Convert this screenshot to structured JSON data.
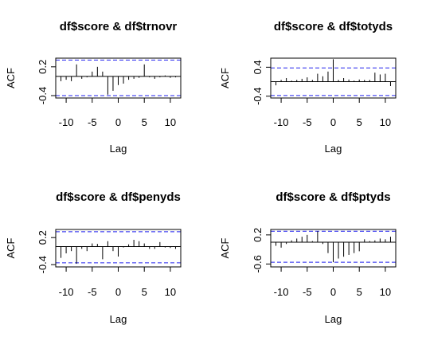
{
  "chart_data": [
    {
      "type": "bar",
      "title": "df$score & df$trnovr",
      "xlabel": "Lag",
      "ylabel": "ACF",
      "xlim": [
        -12,
        12
      ],
      "ylim": [
        -0.45,
        0.38
      ],
      "xticks": [
        -10,
        -5,
        0,
        5,
        10
      ],
      "xtick_labels": [
        "-10",
        "-5",
        "0",
        "5",
        "10"
      ],
      "yticks": [
        0.2,
        -0.4
      ],
      "ytick_labels": [
        "0.2",
        "-0.4"
      ],
      "ci": [
        0.34,
        -0.4
      ],
      "ci_color": "#2222ee",
      "lags": [
        -11,
        -10,
        -9,
        -8,
        -7,
        -6,
        -5,
        -4,
        -3,
        -2,
        -1,
        0,
        1,
        2,
        3,
        4,
        5,
        6,
        7,
        8,
        9,
        10,
        11
      ],
      "values": [
        -0.1,
        -0.07,
        -0.1,
        0.25,
        -0.05,
        -0.02,
        0.1,
        0.2,
        0.1,
        -0.38,
        -0.3,
        -0.18,
        -0.15,
        -0.07,
        -0.05,
        -0.03,
        0.25,
        -0.02,
        -0.05,
        -0.02,
        0.02,
        -0.03,
        -0.02
      ]
    },
    {
      "type": "bar",
      "title": "df$score & df$totyds",
      "xlabel": "Lag",
      "ylabel": "ACF",
      "xlim": [
        -12,
        12
      ],
      "ylim": [
        -0.45,
        0.65
      ],
      "xticks": [
        -10,
        -5,
        0,
        5,
        10
      ],
      "xtick_labels": [
        "-10",
        "-5",
        "0",
        "5",
        "10"
      ],
      "yticks": [
        0.4,
        -0.4
      ],
      "ytick_labels": [
        "0.4",
        "-0.4"
      ],
      "ci": [
        0.38,
        -0.38
      ],
      "ci_color": "#2222ee",
      "lags": [
        -11,
        -10,
        -9,
        -8,
        -7,
        -6,
        -5,
        -4,
        -3,
        -2,
        -1,
        0,
        1,
        2,
        3,
        4,
        5,
        6,
        7,
        8,
        9,
        10,
        11
      ],
      "values": [
        -0.1,
        0.05,
        0.1,
        0.03,
        0.05,
        0.08,
        0.12,
        0.05,
        0.22,
        0.15,
        0.28,
        0.62,
        0.05,
        0.1,
        0.06,
        0.03,
        0.06,
        0.05,
        0.05,
        0.25,
        0.2,
        0.22,
        -0.12
      ]
    },
    {
      "type": "bar",
      "title": "df$score & df$penyds",
      "xlabel": "Lag",
      "ylabel": "ACF",
      "xlim": [
        -12,
        12
      ],
      "ylim": [
        -0.45,
        0.38
      ],
      "xticks": [
        -10,
        -5,
        0,
        5,
        10
      ],
      "xtick_labels": [
        "-10",
        "-5",
        "0",
        "5",
        "10"
      ],
      "yticks": [
        0.2,
        -0.4
      ],
      "ytick_labels": [
        "0.2",
        "-0.4"
      ],
      "ci": [
        0.33,
        -0.36
      ],
      "ci_color": "#2222ee",
      "lags": [
        -11,
        -10,
        -9,
        -8,
        -7,
        -6,
        -5,
        -4,
        -3,
        -2,
        -1,
        0,
        1,
        2,
        3,
        4,
        5,
        6,
        7,
        8,
        9,
        10,
        11
      ],
      "values": [
        -0.25,
        -0.15,
        -0.1,
        -0.38,
        -0.05,
        -0.1,
        0.07,
        0.06,
        -0.28,
        0.12,
        -0.1,
        -0.22,
        -0.02,
        0.05,
        0.15,
        0.12,
        0.07,
        -0.05,
        -0.05,
        0.1,
        -0.02,
        -0.03,
        -0.05
      ]
    },
    {
      "type": "bar",
      "title": "df$score & df$ptyds",
      "xlabel": "Lag",
      "ylabel": "ACF",
      "xlim": [
        -12,
        12
      ],
      "ylim": [
        -0.68,
        0.35
      ],
      "xticks": [
        -10,
        -5,
        0,
        5,
        10
      ],
      "xtick_labels": [
        "-10",
        "-5",
        "0",
        "5",
        "10"
      ],
      "yticks": [
        0.2,
        -0.6
      ],
      "ytick_labels": [
        "0.2",
        "-0.6"
      ],
      "ci": [
        0.3,
        -0.55
      ],
      "ci_color": "#2222ee",
      "lags": [
        -11,
        -10,
        -9,
        -8,
        -7,
        -6,
        -5,
        -4,
        -3,
        -2,
        -1,
        0,
        1,
        2,
        3,
        4,
        5,
        6,
        7,
        8,
        9,
        10,
        11
      ],
      "values": [
        -0.1,
        -0.15,
        -0.05,
        0.05,
        0.1,
        0.15,
        0.2,
        0.03,
        0.3,
        -0.05,
        -0.3,
        -0.55,
        -0.45,
        -0.4,
        -0.35,
        -0.3,
        -0.25,
        0.08,
        0.03,
        0.05,
        0.1,
        0.08,
        0.15
      ]
    }
  ]
}
